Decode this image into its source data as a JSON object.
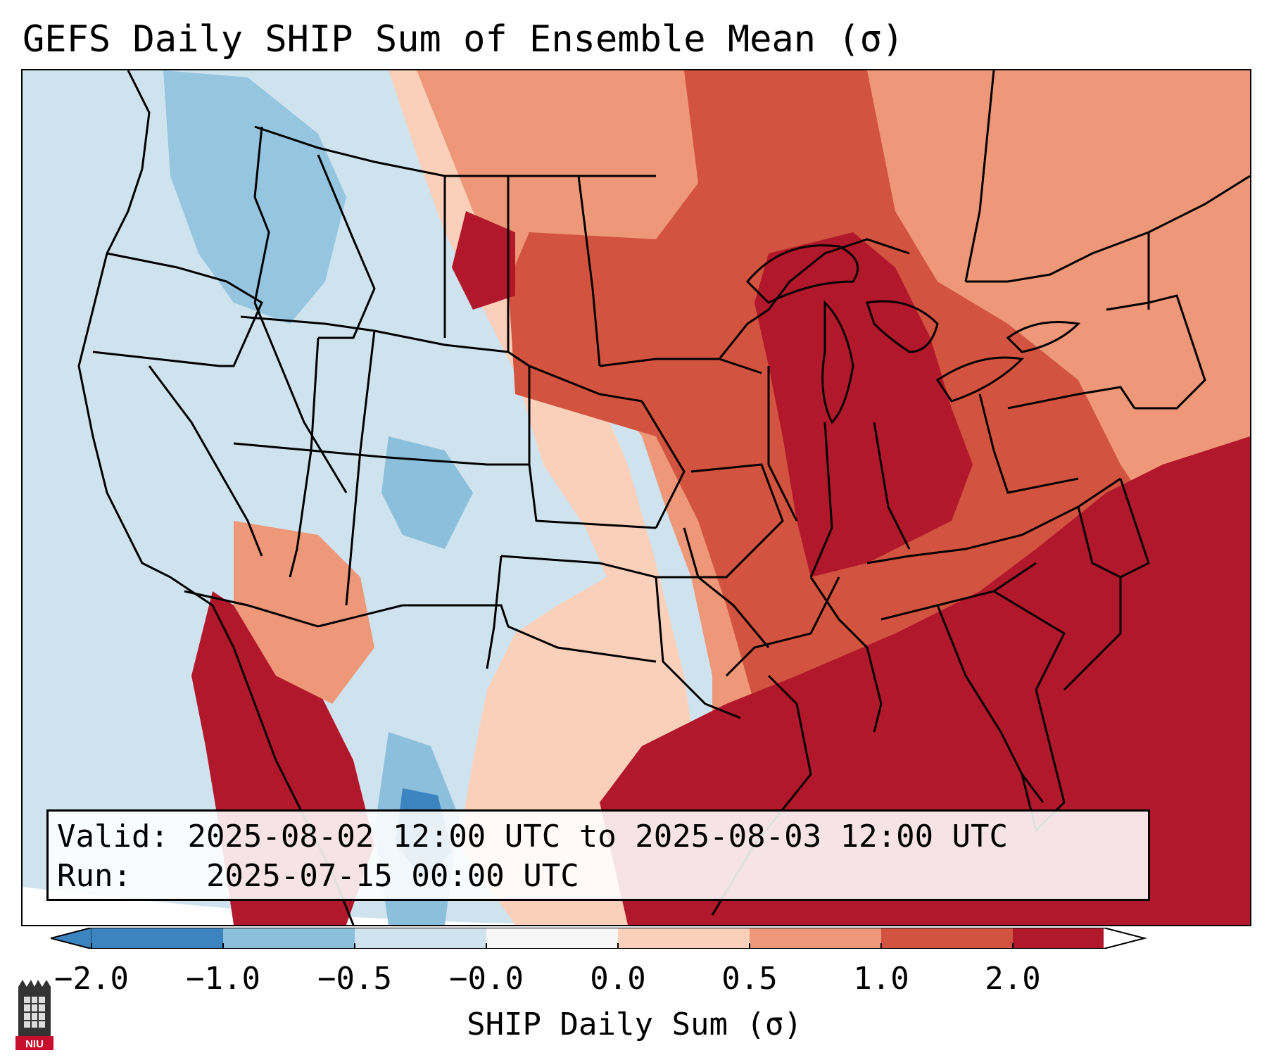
{
  "title": "GEFS Daily SHIP Sum of Ensemble Mean (σ)",
  "info": {
    "valid_label": "Valid:",
    "valid_value": "2025-08-02 12:00 UTC to 2025-08-03 12:00 UTC",
    "run_label": "Run:",
    "run_value": "2025-07-15 00:00 UTC"
  },
  "colorbar": {
    "label": "SHIP Daily Sum (σ)",
    "ticks": [
      "−2.0",
      "−1.0",
      "−0.5",
      "−0.0",
      "0.0",
      "0.5",
      "1.0",
      "2.0"
    ],
    "colors": [
      "#3b84bf",
      "#8bbfdc",
      "#cfe3ef",
      "#f7f7f7",
      "#fbd0bb",
      "#ee9779",
      "#d2533f",
      "#b2182b"
    ],
    "extend": "both"
  },
  "legend_colors": {
    "strong_negative": "#3b84bf",
    "negative": "#8bbfdc",
    "weak_negative": "#cfe3ef",
    "weak_positive": "#fbd0bb",
    "positive": "#ee9779",
    "strong_positive_a": "#d2533f",
    "strong_positive_b": "#b2182b"
  },
  "logo": {
    "text": "NIU"
  }
}
